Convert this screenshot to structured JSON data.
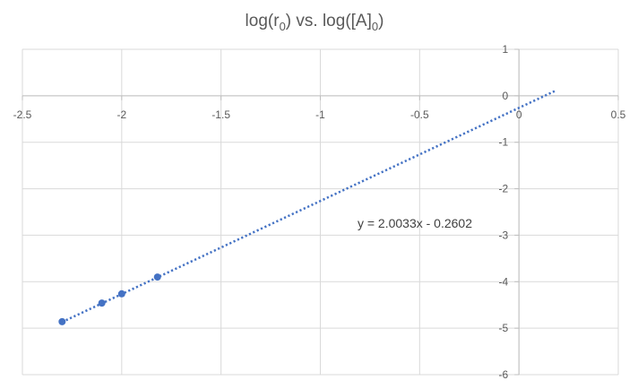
{
  "chart_data": {
    "type": "scatter",
    "title": {
      "prefix": "log(r",
      "sub1": "0",
      "middle": ") vs. log([A]",
      "sub2": "0",
      "suffix": ")"
    },
    "xlim": [
      -2.5,
      0.5
    ],
    "ylim": [
      -6,
      1
    ],
    "x_ticks": [
      -2.5,
      -2,
      -1.5,
      -1,
      -0.5,
      0,
      0.5
    ],
    "y_ticks": [
      1,
      0,
      -1,
      -2,
      -3,
      -4,
      -5,
      -6
    ],
    "x_tick_labels": [
      "-2.5",
      "-2",
      "-1.5",
      "-1",
      "-0.5",
      "0",
      "0.5"
    ],
    "y_tick_labels": [
      "1",
      "0",
      "-1",
      "-2",
      "-3",
      "-4",
      "-5",
      "-6"
    ],
    "grid": true,
    "series": [
      {
        "color": "#4472c4",
        "points": [
          {
            "x": -2.3,
            "y": -4.86
          },
          {
            "x": -2.1,
            "y": -4.46
          },
          {
            "x": -2.0,
            "y": -4.26
          },
          {
            "x": -1.82,
            "y": -3.9
          }
        ]
      }
    ],
    "trendline": {
      "type": "linear",
      "slope": 2.0033,
      "intercept": -0.2602,
      "x_start": -2.3,
      "x_end": 0.18,
      "style": "dotted",
      "color": "#4472c4",
      "equation_label": "y = 2.0033x - 0.2602"
    }
  }
}
